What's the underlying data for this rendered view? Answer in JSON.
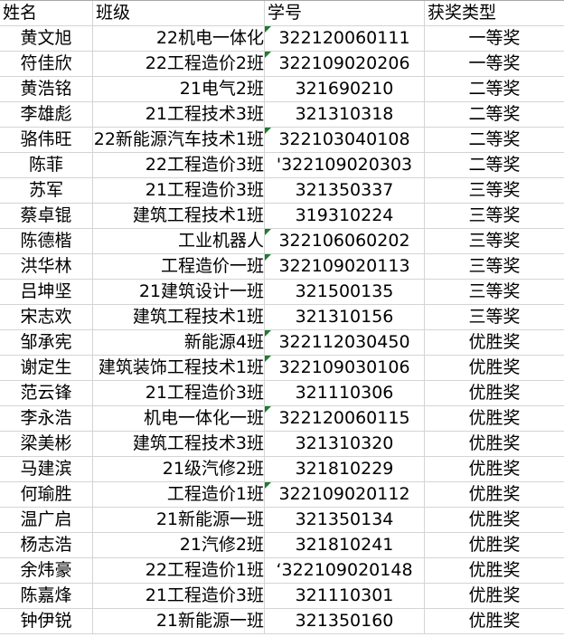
{
  "headers": [
    "姓名",
    "班级",
    "学号",
    "获奖类型"
  ],
  "indicator_color": "#1e7a2e",
  "rows": [
    {
      "name": "黄文旭",
      "class": "22机电一体化",
      "id": "322120060111",
      "award": "一等奖",
      "flag": true
    },
    {
      "name": "符佳欣",
      "class": "22工程造价2班",
      "id": "322109020206",
      "award": "一等奖",
      "flag": true
    },
    {
      "name": "黄浩铭",
      "class": "21电气2班",
      "id": "321690210",
      "award": "二等奖",
      "flag": false
    },
    {
      "name": "李雄彪",
      "class": "21工程技术3班",
      "id": "321310318",
      "award": "二等奖",
      "flag": false
    },
    {
      "name": "骆伟旺",
      "class": "22新能源汽车技术1班",
      "id": "322103040108",
      "award": "二等奖",
      "flag": true
    },
    {
      "name": "陈菲",
      "class": "22工程造价3班",
      "id": "'322109020303",
      "award": "二等奖",
      "flag": false
    },
    {
      "name": "苏军",
      "class": "21工程造价3班",
      "id": "321350337",
      "award": "三等奖",
      "flag": false
    },
    {
      "name": "蔡卓锟",
      "class": "建筑工程技术1班",
      "id": "319310224",
      "award": "三等奖",
      "flag": false
    },
    {
      "name": "陈德楷",
      "class": "工业机器人",
      "id": "322106060202",
      "award": "三等奖",
      "flag": true
    },
    {
      "name": "洪华林",
      "class": "工程造价一班",
      "id": "322109020113",
      "award": "三等奖",
      "flag": true
    },
    {
      "name": "吕坤坚",
      "class": "21建筑设计一班",
      "id": "321500135",
      "award": "三等奖",
      "flag": false
    },
    {
      "name": "宋志欢",
      "class": "建筑工程技术1班",
      "id": "321310156",
      "award": "三等奖",
      "flag": false
    },
    {
      "name": "邹承宪",
      "class": "新能源4班",
      "id": "322112030450",
      "award": "优胜奖",
      "flag": true
    },
    {
      "name": "谢定生",
      "class": "建筑装饰工程技术1班",
      "id": "322109030106",
      "award": "优胜奖",
      "flag": true
    },
    {
      "name": "范云锋",
      "class": "21工程造价3班",
      "id": "321110306",
      "award": "优胜奖",
      "flag": false
    },
    {
      "name": "李永浩",
      "class": "机电一体化一班",
      "id": "322120060115",
      "award": "优胜奖",
      "flag": true
    },
    {
      "name": "梁美彬",
      "class": "建筑工程技术3班",
      "id": "321310320",
      "award": "优胜奖",
      "flag": false
    },
    {
      "name": "马建滨",
      "class": "21级汽修2班",
      "id": "321810229",
      "award": "优胜奖",
      "flag": false
    },
    {
      "name": "何瑜胜",
      "class": "工程造价1班",
      "id": "322109020112",
      "award": "优胜奖",
      "flag": true
    },
    {
      "name": "温广启",
      "class": "21新能源一班",
      "id": "321350134",
      "award": "优胜奖",
      "flag": false
    },
    {
      "name": "杨志浩",
      "class": "21汽修2班",
      "id": "321810241",
      "award": "优胜奖",
      "flag": false
    },
    {
      "name": "余炜豪",
      "class": "22工程造价1班",
      "id": "‘322109020148",
      "award": "优胜奖",
      "flag": false
    },
    {
      "name": "陈嘉烽",
      "class": "21工程造价3班",
      "id": "321110301",
      "award": "优胜奖",
      "flag": false
    },
    {
      "name": "钟伊锐",
      "class": "21新能源一班",
      "id": "321350160",
      "award": "优胜奖",
      "flag": false
    }
  ]
}
